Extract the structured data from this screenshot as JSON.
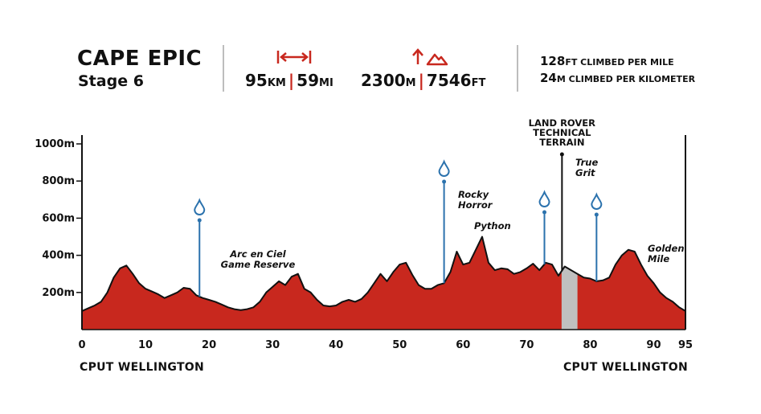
{
  "header": {
    "title": "CAPE EPIC",
    "stage": "Stage 6",
    "distance": {
      "km_value": "95",
      "km_unit": "KM",
      "mi_value": "59",
      "mi_unit": "MI"
    },
    "climb": {
      "m_value": "2300",
      "m_unit": "M",
      "ft_value": "7546",
      "ft_unit": "FT"
    },
    "rates": [
      {
        "value": "128",
        "unit": "FT",
        "text": " CLIMBED PER MILE"
      },
      {
        "value": "24",
        "unit": "M",
        "text": " CLIMBED PER KILOMETER"
      }
    ],
    "separator": "|"
  },
  "colors": {
    "profile_fill": "#c8281e",
    "profile_stroke": "#111111",
    "water": "#2b72ad",
    "technical": "#c0c0c0",
    "accent": "#c8281e"
  },
  "icons": [
    "distance-arrows-icon",
    "elevation-mountain-icon",
    "water-drop-icon"
  ],
  "chart_data": {
    "type": "area",
    "x_unit": "km",
    "y_unit": "m",
    "xlim": [
      0,
      95
    ],
    "ylim": [
      0,
      1000
    ],
    "x_ticks": [
      0,
      10,
      20,
      30,
      40,
      50,
      60,
      70,
      80,
      90,
      95
    ],
    "y_ticks": [
      200,
      400,
      600,
      800,
      1000
    ],
    "y_tick_labels": [
      "200m",
      "400m",
      "600m",
      "800m",
      "1000m"
    ],
    "x": [
      0,
      1,
      2,
      3,
      4,
      5,
      6,
      7,
      8,
      9,
      10,
      11,
      12,
      13,
      14,
      15,
      16,
      17,
      18,
      19,
      20,
      21,
      22,
      23,
      24,
      25,
      26,
      27,
      28,
      29,
      30,
      31,
      32,
      33,
      34,
      35,
      36,
      37,
      38,
      39,
      40,
      41,
      42,
      43,
      44,
      45,
      46,
      47,
      48,
      49,
      50,
      51,
      52,
      53,
      54,
      55,
      56,
      57,
      58,
      59,
      60,
      61,
      62,
      63,
      64,
      65,
      66,
      67,
      68,
      69,
      70,
      71,
      72,
      73,
      74,
      75,
      76,
      77,
      78,
      79,
      80,
      81,
      82,
      83,
      84,
      85,
      86,
      87,
      88,
      89,
      90,
      91,
      92,
      93,
      94,
      95
    ],
    "elevation": [
      100,
      115,
      130,
      150,
      200,
      280,
      330,
      345,
      300,
      250,
      220,
      205,
      190,
      170,
      185,
      200,
      225,
      220,
      185,
      170,
      160,
      150,
      135,
      120,
      110,
      105,
      110,
      120,
      150,
      200,
      230,
      260,
      240,
      285,
      300,
      220,
      200,
      160,
      130,
      125,
      130,
      150,
      160,
      150,
      165,
      200,
      250,
      300,
      260,
      310,
      350,
      360,
      295,
      240,
      220,
      220,
      240,
      250,
      310,
      420,
      350,
      360,
      430,
      500,
      360,
      320,
      330,
      325,
      300,
      310,
      330,
      355,
      320,
      360,
      350,
      290,
      340,
      320,
      300,
      280,
      275,
      260,
      265,
      280,
      350,
      400,
      430,
      420,
      350,
      290,
      250,
      200,
      170,
      150,
      120,
      100
    ],
    "water_points": [
      18.5,
      57,
      72.8,
      81
    ],
    "technical_section": {
      "label": "LAND ROVER TECHNICAL TERRAIN",
      "start": 75.5,
      "end": 78
    },
    "annotations": [
      {
        "text": "Arc en Ciel Game Reserve"
      },
      {
        "text": "Rocky Horror"
      },
      {
        "text": "Python"
      },
      {
        "text": "True Grit"
      },
      {
        "text": "Golden Mile"
      }
    ],
    "start_label": "CPUT WELLINGTON",
    "finish_label": "CPUT WELLINGTON"
  }
}
